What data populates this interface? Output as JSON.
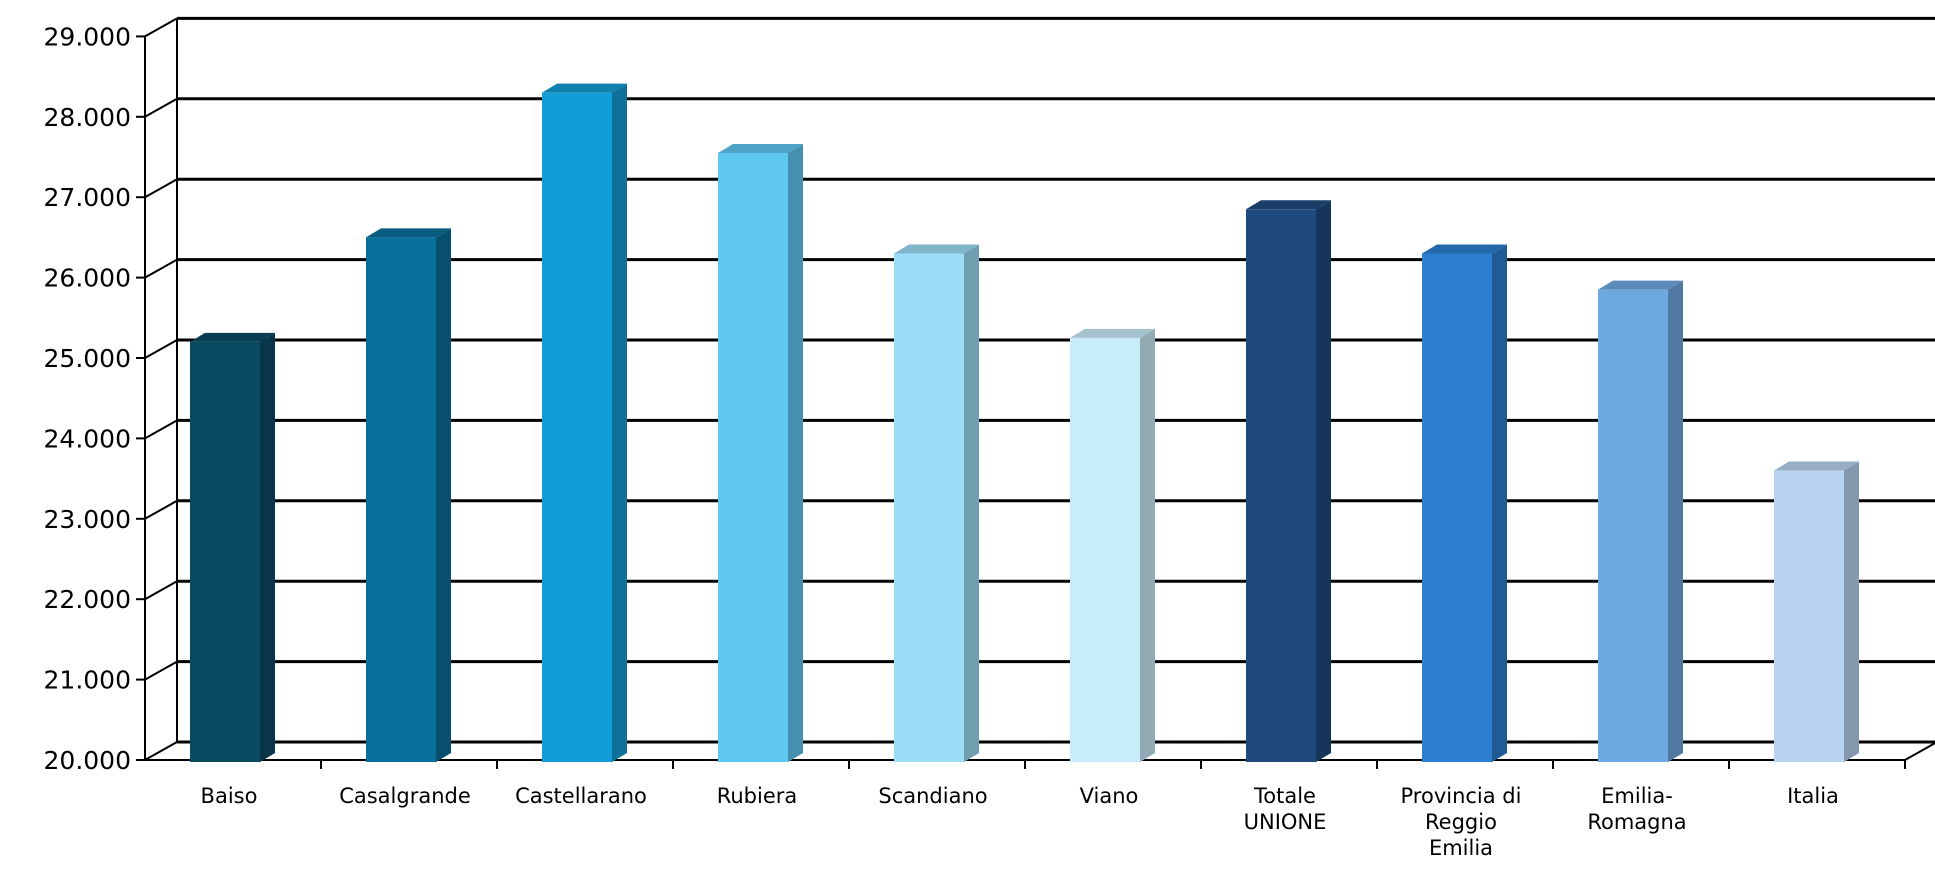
{
  "chart_data": {
    "type": "bar",
    "title": "",
    "xlabel": "",
    "ylabel": "",
    "ylim": [
      20000,
      29000
    ],
    "yticks": [
      "20.000",
      "21.000",
      "22.000",
      "23.000",
      "24.000",
      "25.000",
      "26.000",
      "27.000",
      "28.000",
      "29.000"
    ],
    "grid": true,
    "legend": "none",
    "categories": [
      [
        "Baiso"
      ],
      [
        "Casalgrande"
      ],
      [
        "Castellarano"
      ],
      [
        "Rubiera"
      ],
      [
        "Scandiano"
      ],
      [
        "Viano"
      ],
      [
        "Totale",
        "UNIONE"
      ],
      [
        "Provincia di",
        "Reggio",
        "Emilia"
      ],
      [
        "Emilia-",
        "Romagna"
      ],
      [
        "Italia"
      ]
    ],
    "values": [
      25200,
      26500,
      28300,
      27550,
      26300,
      25250,
      26850,
      26300,
      25850,
      23600
    ],
    "colors": [
      "#0b4a63",
      "#0a6e9a",
      "#139dd6",
      "#5ec8f1",
      "#9cdcf6",
      "#c9ecfa",
      "#1e4a7e",
      "#2c7ed0",
      "#6ea8e0",
      "#b8d4f0"
    ]
  }
}
